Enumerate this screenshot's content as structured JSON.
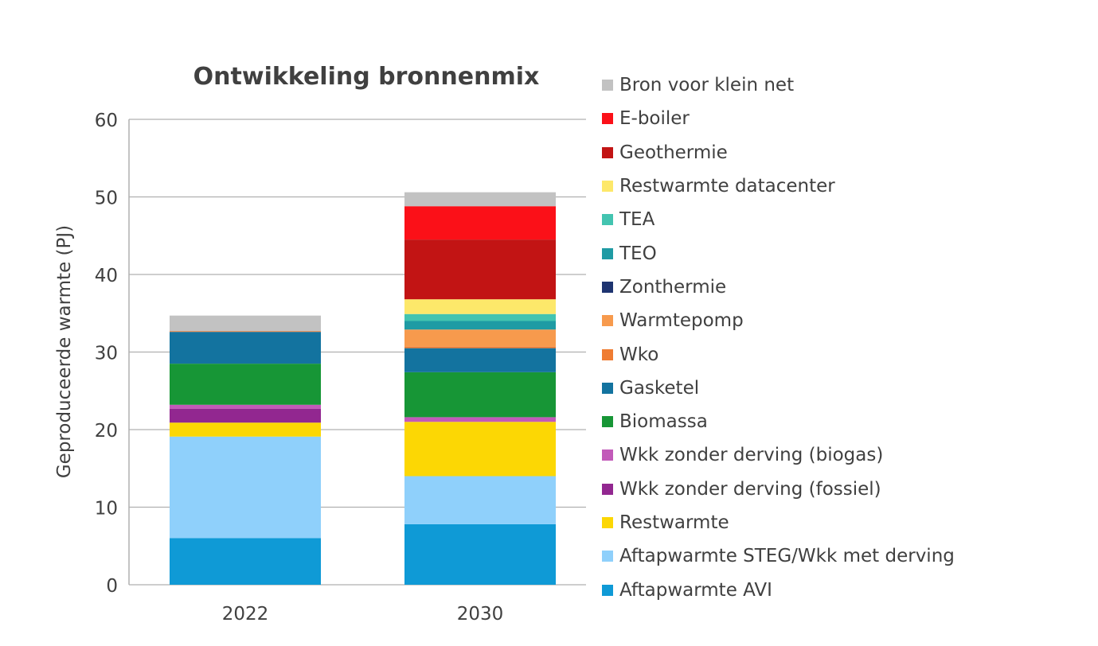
{
  "chart_data": {
    "type": "bar",
    "stacked": true,
    "title": "Ontwikkeling bronnenmix",
    "xlabel": "",
    "ylabel": "Geproduceerde warmte (PJ)",
    "ylim": [
      0,
      60
    ],
    "yticks": [
      0,
      10,
      20,
      30,
      40,
      50,
      60
    ],
    "grid": true,
    "legend_position": "right",
    "categories": [
      "2022",
      "2030"
    ],
    "series": [
      {
        "name": "Aftapwarmte AVI",
        "color": "#0f9ad6",
        "values": [
          6.0,
          7.8
        ]
      },
      {
        "name": "Aftapwarmte STEG/Wkk met derving",
        "color": "#8fd0fb",
        "values": [
          13.1,
          6.2
        ]
      },
      {
        "name": "Restwarmte",
        "color": "#fcd704",
        "values": [
          1.8,
          7.0
        ]
      },
      {
        "name": "Wkk zonder derving (fossiel)",
        "color": "#922790",
        "values": [
          1.8,
          0
        ]
      },
      {
        "name": "Wkk zonder derving (biogas)",
        "color": "#c25ab9",
        "values": [
          0.5,
          0.6
        ]
      },
      {
        "name": "Biomassa",
        "color": "#179636",
        "values": [
          5.3,
          5.8
        ]
      },
      {
        "name": "Gasketel",
        "color": "#13739f",
        "values": [
          4.1,
          3.1
        ]
      },
      {
        "name": "Wko",
        "color": "#ef7c32",
        "values": [
          0.1,
          0.2
        ]
      },
      {
        "name": "Warmtepomp",
        "color": "#f79a4d",
        "values": [
          0,
          2.2
        ]
      },
      {
        "name": "Zonthermie",
        "color": "#1e3470",
        "values": [
          0,
          0
        ]
      },
      {
        "name": "TEO",
        "color": "#1f9ba4",
        "values": [
          0,
          1.1
        ]
      },
      {
        "name": "TEA",
        "color": "#43c4b0",
        "values": [
          0,
          0.9
        ]
      },
      {
        "name": "Restwarmte datacenter",
        "color": "#fde86a",
        "values": [
          0,
          1.9
        ]
      },
      {
        "name": "Geothermie",
        "color": "#c21414",
        "values": [
          0,
          7.7
        ]
      },
      {
        "name": "E-boiler",
        "color": "#fb1018",
        "values": [
          0,
          4.3
        ]
      },
      {
        "name": "Bron voor klein net",
        "color": "#c2c2c2",
        "values": [
          2.0,
          1.8
        ]
      }
    ]
  }
}
